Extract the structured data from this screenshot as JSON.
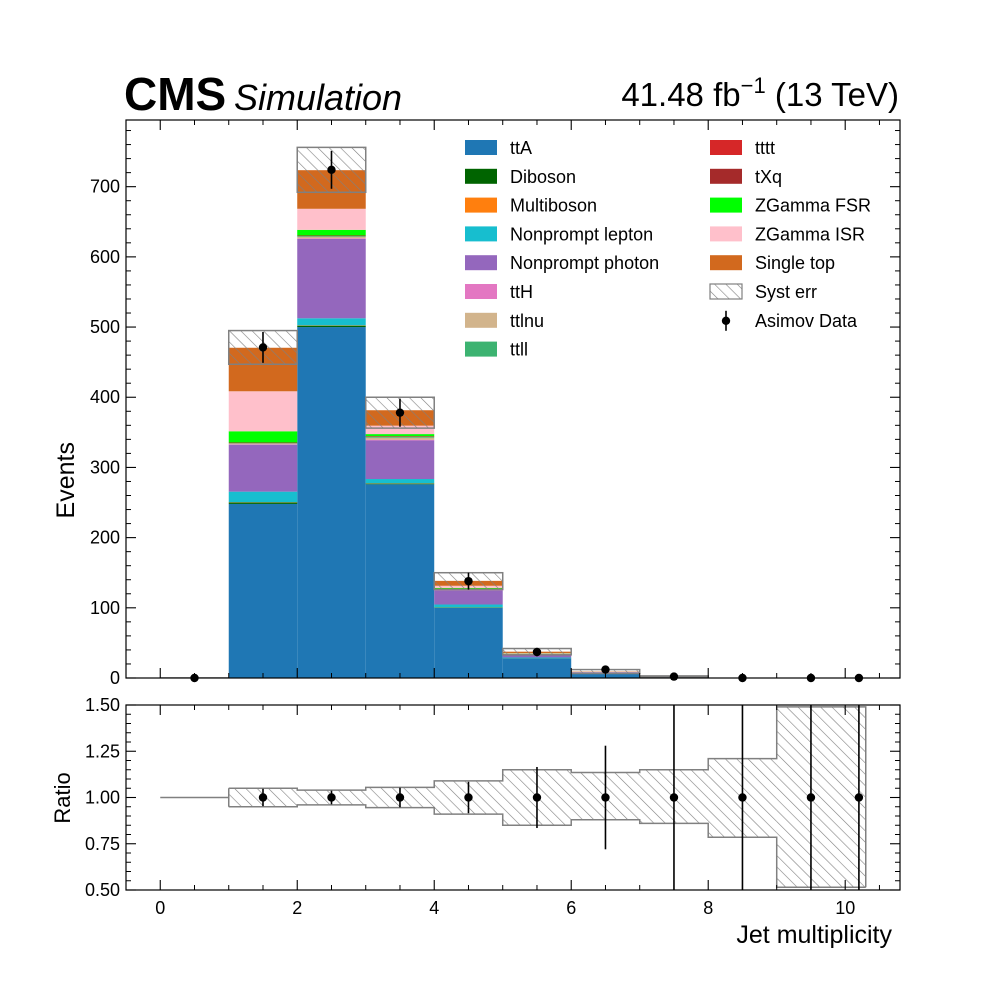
{
  "header": {
    "experiment": "CMS",
    "status": "Simulation",
    "lumi": "41.48 fb",
    "lumi_exp": "−1",
    "energy": " (13 TeV)"
  },
  "colors": {
    "ttA": "#1f77b4",
    "Diboson": "#006400",
    "Multiboson": "#ff7f0e",
    "Nonprompt lepton": "#17becf",
    "Nonprompt photon": "#9467bd",
    "ttH": "#e377c2",
    "ttlnu": "#d2b48c",
    "ttll": "#3cb371",
    "tttt": "#d62728",
    "tXq": "#a52a2a",
    "ZGamma FSR": "#00ff00",
    "ZGamma ISR": "#ffc0cb",
    "Single top": "#d2691e",
    "syst_edge": "#808080",
    "data": "#000000"
  },
  "chart_data": [
    {
      "type": "bar",
      "stacked": true,
      "xlabel": "Jet multiplicity",
      "ylabel": "Events",
      "xlim": [
        -0.5,
        10.8
      ],
      "ylim": [
        0,
        795
      ],
      "xticks": [
        0,
        2,
        4,
        6,
        8,
        10
      ],
      "yticks": [
        0,
        100,
        200,
        300,
        400,
        500,
        600,
        700
      ],
      "legend_position": "top-right",
      "bin_edges": [
        0,
        1,
        2,
        3,
        4,
        5,
        6,
        7,
        8,
        9,
        10,
        11
      ],
      "series": [
        {
          "name": "ttA",
          "values": [
            0,
            248,
            500,
            276,
            100,
            28,
            7,
            2,
            0,
            0,
            0
          ]
        },
        {
          "name": "Diboson",
          "values": [
            0,
            2,
            2,
            1,
            0.5,
            0.2,
            0,
            0,
            0,
            0,
            0
          ]
        },
        {
          "name": "Multiboson",
          "values": [
            0,
            0.5,
            0.5,
            0.5,
            0.2,
            0,
            0,
            0,
            0,
            0,
            0
          ]
        },
        {
          "name": "Nonprompt lepton",
          "values": [
            0,
            15,
            10,
            6,
            4,
            1,
            0.3,
            0,
            0,
            0,
            0
          ]
        },
        {
          "name": "Nonprompt photon",
          "values": [
            0,
            67,
            113,
            55,
            20,
            4,
            1,
            0.3,
            0,
            0,
            0
          ]
        },
        {
          "name": "ttH",
          "values": [
            0,
            0.5,
            1,
            1,
            0.5,
            0.2,
            0,
            0,
            0,
            0,
            0
          ]
        },
        {
          "name": "ttlnu",
          "values": [
            0,
            1,
            2,
            3,
            1,
            0.5,
            0.1,
            0,
            0,
            0,
            0
          ]
        },
        {
          "name": "ttll",
          "values": [
            0,
            0.5,
            1,
            1,
            0.5,
            0.2,
            0.1,
            0,
            0,
            0,
            0
          ]
        },
        {
          "name": "tttt",
          "values": [
            0,
            0,
            0,
            0,
            0.2,
            0.2,
            0.1,
            0,
            0,
            0,
            0
          ]
        },
        {
          "name": "tXq",
          "values": [
            0,
            1,
            1,
            1,
            0.5,
            0.2,
            0,
            0,
            0,
            0,
            0
          ]
        },
        {
          "name": "ZGamma FSR",
          "values": [
            0,
            16,
            8,
            3,
            1,
            0.3,
            0,
            0,
            0,
            0,
            0
          ]
        },
        {
          "name": "ZGamma ISR",
          "values": [
            0,
            57,
            30,
            12,
            3,
            0.7,
            0.1,
            0,
            0,
            0,
            0
          ]
        },
        {
          "name": "Single top",
          "values": [
            0,
            62,
            55,
            22,
            7,
            2,
            0.5,
            0.1,
            0,
            0,
            0
          ]
        }
      ],
      "syst_err": {
        "name": "Syst err",
        "total": [
          0,
          471,
          724,
          378,
          138,
          37.5,
          9.2,
          2.4,
          0,
          0,
          0
        ],
        "up": [
          0,
          495,
          756,
          400,
          150,
          42,
          12,
          3,
          0,
          0,
          0
        ],
        "down": [
          0,
          447,
          692,
          356,
          126,
          33,
          6.4,
          1.8,
          0,
          0,
          0
        ]
      },
      "data": {
        "name": "Asimov Data",
        "x": [
          0.5,
          1.5,
          2.5,
          3.5,
          4.5,
          5.5,
          6.5,
          7.5,
          8.5,
          9.5,
          10.2
        ],
        "y": [
          0,
          471,
          724,
          378,
          138,
          37,
          12,
          2,
          0,
          0,
          0
        ],
        "yerr": [
          0,
          22,
          27,
          20,
          12,
          6,
          3.5,
          1.4,
          0,
          0,
          0
        ]
      }
    },
    {
      "type": "line",
      "xlabel": "Jet multiplicity",
      "ylabel": "Ratio",
      "xlim": [
        -0.5,
        10.8
      ],
      "ylim": [
        0.5,
        1.5
      ],
      "xticks": [
        0,
        2,
        4,
        6,
        8,
        10
      ],
      "yticks": [
        0.5,
        0.75,
        1.0,
        1.25,
        1.5
      ],
      "yticklabels": [
        "0.50",
        "0.75",
        "1.00",
        "1.25",
        "1.50"
      ],
      "reference_line": {
        "x": [
          0,
          1
        ],
        "y": 1.0
      },
      "band_edges": [
        1,
        2,
        3,
        4,
        5,
        6,
        7,
        8,
        9,
        10.3
      ],
      "band_up": [
        1.05,
        1.04,
        1.055,
        1.09,
        1.15,
        1.135,
        1.15,
        1.21,
        1.49
      ],
      "band_down": [
        0.95,
        0.96,
        0.945,
        0.91,
        0.85,
        0.88,
        0.86,
        0.785,
        0.515
      ],
      "points": {
        "x": [
          1.5,
          2.5,
          3.5,
          4.5,
          5.5,
          6.5,
          7.5,
          8.5,
          9.5,
          10.2
        ],
        "y": [
          1,
          1,
          1,
          1,
          1,
          1,
          1,
          1,
          1,
          1
        ],
        "yerr_up": [
          0.047,
          0.037,
          0.053,
          0.085,
          0.165,
          0.28,
          0.6,
          0.6,
          0.6,
          0.6
        ],
        "yerr_down": [
          0.047,
          0.037,
          0.053,
          0.085,
          0.165,
          0.28,
          0.6,
          0.6,
          0.6,
          0.6
        ]
      }
    }
  ]
}
